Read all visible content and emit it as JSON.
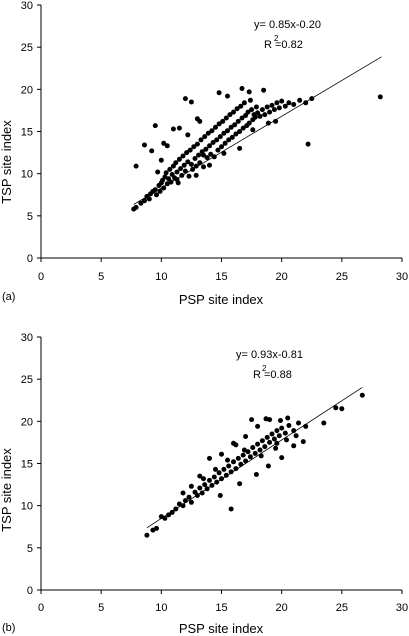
{
  "chart_data": [
    {
      "type": "scatter",
      "panel_label": "(a)",
      "xlabel": "PSP  site index",
      "ylabel": "TSP  site index",
      "xlim": [
        0,
        30
      ],
      "ylim": [
        0,
        30
      ],
      "xticks": [
        "0",
        "5",
        "10",
        "15",
        "20",
        "25",
        "30"
      ],
      "yticks": [
        "0",
        "5",
        "10",
        "15",
        "20",
        "25",
        "30"
      ],
      "equation": "y=  0.85x-0.20",
      "r2": "R  =0.82",
      "r2_sup": "2",
      "regression": {
        "slope": 0.85,
        "intercept": -0.2,
        "x_range": [
          7.7,
          28.3
        ]
      },
      "points": [
        [
          7.7,
          5.8
        ],
        [
          7.9,
          6.0
        ],
        [
          8.3,
          6.5
        ],
        [
          8.6,
          6.8
        ],
        [
          8.8,
          7.3
        ],
        [
          9.0,
          7.0
        ],
        [
          9.1,
          7.6
        ],
        [
          9.3,
          7.9
        ],
        [
          9.5,
          8.1
        ],
        [
          9.6,
          7.5
        ],
        [
          9.8,
          8.6
        ],
        [
          9.9,
          7.9
        ],
        [
          10.0,
          8.9
        ],
        [
          10.1,
          9.2
        ],
        [
          10.2,
          8.3
        ],
        [
          10.3,
          9.6
        ],
        [
          10.4,
          10.1
        ],
        [
          10.5,
          8.8
        ],
        [
          10.6,
          9.4
        ],
        [
          10.7,
          10.5
        ],
        [
          10.8,
          9.0
        ],
        [
          10.9,
          9.9
        ],
        [
          11.0,
          10.9
        ],
        [
          11.1,
          9.5
        ],
        [
          11.2,
          11.3
        ],
        [
          11.3,
          10.2
        ],
        [
          11.4,
          8.9
        ],
        [
          11.5,
          11.7
        ],
        [
          11.6,
          10.6
        ],
        [
          11.7,
          9.8
        ],
        [
          11.8,
          12.1
        ],
        [
          11.9,
          11.0
        ],
        [
          12.0,
          10.3
        ],
        [
          12.1,
          12.5
        ],
        [
          12.2,
          11.4
        ],
        [
          12.3,
          9.7
        ],
        [
          12.4,
          12.8
        ],
        [
          12.5,
          11.1
        ],
        [
          12.6,
          10.5
        ],
        [
          12.7,
          13.2
        ],
        [
          12.8,
          11.8
        ],
        [
          12.9,
          10.9
        ],
        [
          13.0,
          13.5
        ],
        [
          13.1,
          12.2
        ],
        [
          13.2,
          11.3
        ],
        [
          13.3,
          14.0
        ],
        [
          13.4,
          12.6
        ],
        [
          13.5,
          10.8
        ],
        [
          13.6,
          14.4
        ],
        [
          13.7,
          12.9
        ],
        [
          13.8,
          11.9
        ],
        [
          13.9,
          14.8
        ],
        [
          14.0,
          13.3
        ],
        [
          14.1,
          12.3
        ],
        [
          14.2,
          15.1
        ],
        [
          14.3,
          13.7
        ],
        [
          14.4,
          12.0
        ],
        [
          14.5,
          15.5
        ],
        [
          14.6,
          14.0
        ],
        [
          14.7,
          12.8
        ],
        [
          14.8,
          15.9
        ],
        [
          14.9,
          14.4
        ],
        [
          15.0,
          13.2
        ],
        [
          15.1,
          16.2
        ],
        [
          15.2,
          14.8
        ],
        [
          15.3,
          13.6
        ],
        [
          15.4,
          16.6
        ],
        [
          15.5,
          15.1
        ],
        [
          15.6,
          14.0
        ],
        [
          15.7,
          17.0
        ],
        [
          15.8,
          15.5
        ],
        [
          15.9,
          14.3
        ],
        [
          16.0,
          17.3
        ],
        [
          16.1,
          15.8
        ],
        [
          16.2,
          14.7
        ],
        [
          16.3,
          17.7
        ],
        [
          16.4,
          16.2
        ],
        [
          16.5,
          15.0
        ],
        [
          16.6,
          18.0
        ],
        [
          16.7,
          16.6
        ],
        [
          16.8,
          15.4
        ],
        [
          16.9,
          18.4
        ],
        [
          17.0,
          16.9
        ],
        [
          17.1,
          15.7
        ],
        [
          17.2,
          17.3
        ],
        [
          17.3,
          16.0
        ],
        [
          17.4,
          18.7
        ],
        [
          17.5,
          17.6
        ],
        [
          17.6,
          16.4
        ],
        [
          17.7,
          17.0
        ],
        [
          17.8,
          16.7
        ],
        [
          17.9,
          17.9
        ],
        [
          18.0,
          17.2
        ],
        [
          18.2,
          16.8
        ],
        [
          18.4,
          17.6
        ],
        [
          18.6,
          17.0
        ],
        [
          18.8,
          17.9
        ],
        [
          19.0,
          17.3
        ],
        [
          19.2,
          18.1
        ],
        [
          19.4,
          17.6
        ],
        [
          19.6,
          18.4
        ],
        [
          19.8,
          17.8
        ],
        [
          20.0,
          18.6
        ],
        [
          20.3,
          18.0
        ],
        [
          20.6,
          18.4
        ],
        [
          21.0,
          18.2
        ],
        [
          21.5,
          18.7
        ],
        [
          22.0,
          18.4
        ],
        [
          22.5,
          18.9
        ],
        [
          22.2,
          13.5
        ],
        [
          28.2,
          19.1
        ],
        [
          8.6,
          13.4
        ],
        [
          9.2,
          12.7
        ],
        [
          9.5,
          15.7
        ],
        [
          10.2,
          13.6
        ],
        [
          7.9,
          10.9
        ],
        [
          12.0,
          18.9
        ],
        [
          13.0,
          16.5
        ],
        [
          12.5,
          18.5
        ],
        [
          11.5,
          15.4
        ],
        [
          14.8,
          19.6
        ],
        [
          16.7,
          20.1
        ],
        [
          17.3,
          19.7
        ],
        [
          18.5,
          19.9
        ],
        [
          15.5,
          19.2
        ],
        [
          11.0,
          15.3
        ],
        [
          10.5,
          13.3
        ],
        [
          19.5,
          16.2
        ],
        [
          16.5,
          13.0
        ],
        [
          14.0,
          11.0
        ],
        [
          12.9,
          9.8
        ],
        [
          13.5,
          12.2
        ],
        [
          11.3,
          9.3
        ],
        [
          10.0,
          11.6
        ],
        [
          9.7,
          10.2
        ],
        [
          15.2,
          12.4
        ],
        [
          17.6,
          15.2
        ],
        [
          18.9,
          16.0
        ],
        [
          13.2,
          16.2
        ],
        [
          12.2,
          14.6
        ]
      ]
    },
    {
      "type": "scatter",
      "panel_label": "(b)",
      "xlabel": "PSP  site index",
      "ylabel": "TSP  site index",
      "xlim": [
        0,
        30
      ],
      "ylim": [
        0,
        30
      ],
      "xticks": [
        "0",
        "5",
        "10",
        "15",
        "20",
        "25",
        "30"
      ],
      "yticks": [
        "0",
        "5",
        "10",
        "15",
        "20",
        "25",
        "30"
      ],
      "equation": "y=  0.93x-0.81",
      "r2": "R  =0.88",
      "r2_sup": "2",
      "regression": {
        "slope": 0.93,
        "intercept": -0.81,
        "x_range": [
          8.8,
          26.7
        ]
      },
      "points": [
        [
          8.8,
          6.5
        ],
        [
          9.3,
          7.1
        ],
        [
          9.6,
          7.3
        ],
        [
          10.0,
          8.7
        ],
        [
          10.3,
          8.5
        ],
        [
          10.6,
          8.9
        ],
        [
          10.9,
          9.2
        ],
        [
          11.2,
          9.6
        ],
        [
          11.5,
          10.2
        ],
        [
          11.8,
          10.0
        ],
        [
          12.0,
          10.6
        ],
        [
          12.3,
          11.0
        ],
        [
          12.5,
          10.4
        ],
        [
          12.8,
          11.6
        ],
        [
          13.0,
          11.2
        ],
        [
          13.2,
          12.1
        ],
        [
          13.4,
          11.5
        ],
        [
          13.6,
          12.5
        ],
        [
          13.8,
          12.0
        ],
        [
          14.0,
          13.0
        ],
        [
          14.2,
          12.4
        ],
        [
          14.4,
          13.4
        ],
        [
          14.6,
          12.8
        ],
        [
          14.8,
          13.9
        ],
        [
          15.0,
          13.2
        ],
        [
          15.2,
          14.3
        ],
        [
          15.4,
          13.6
        ],
        [
          15.6,
          14.7
        ],
        [
          15.8,
          14.0
        ],
        [
          16.0,
          15.2
        ],
        [
          16.2,
          14.4
        ],
        [
          16.4,
          15.6
        ],
        [
          16.6,
          14.9
        ],
        [
          16.8,
          16.0
        ],
        [
          17.0,
          15.3
        ],
        [
          17.2,
          16.4
        ],
        [
          17.4,
          15.8
        ],
        [
          17.6,
          16.9
        ],
        [
          17.8,
          16.2
        ],
        [
          18.0,
          17.3
        ],
        [
          18.2,
          16.6
        ],
        [
          18.4,
          17.7
        ],
        [
          18.6,
          17.0
        ],
        [
          18.8,
          18.1
        ],
        [
          19.0,
          17.5
        ],
        [
          19.2,
          18.5
        ],
        [
          19.4,
          17.9
        ],
        [
          19.6,
          18.9
        ],
        [
          19.8,
          18.3
        ],
        [
          20.0,
          19.2
        ],
        [
          20.3,
          18.6
        ],
        [
          20.6,
          19.5
        ],
        [
          21.0,
          18.9
        ],
        [
          21.4,
          19.8
        ],
        [
          22.0,
          19.4
        ],
        [
          23.5,
          19.8
        ],
        [
          24.5,
          21.6
        ],
        [
          25.0,
          21.5
        ],
        [
          26.7,
          23.1
        ],
        [
          13.2,
          13.5
        ],
        [
          14.0,
          15.6
        ],
        [
          15.0,
          16.1
        ],
        [
          16.0,
          17.4
        ],
        [
          16.2,
          17.2
        ],
        [
          17.0,
          18.2
        ],
        [
          18.0,
          19.4
        ],
        [
          19.0,
          20.2
        ],
        [
          18.7,
          20.3
        ],
        [
          19.9,
          20.1
        ],
        [
          20.5,
          20.4
        ],
        [
          17.5,
          20.2
        ],
        [
          15.5,
          15.4
        ],
        [
          14.5,
          14.3
        ],
        [
          13.5,
          13.2
        ],
        [
          12.5,
          12.3
        ],
        [
          11.8,
          11.5
        ],
        [
          16.5,
          12.6
        ],
        [
          17.9,
          13.7
        ],
        [
          18.9,
          14.7
        ],
        [
          20.0,
          15.7
        ],
        [
          21.0,
          17.1
        ],
        [
          15.8,
          9.6
        ],
        [
          14.9,
          11.2
        ],
        [
          16.9,
          16.6
        ],
        [
          19.5,
          16.8
        ],
        [
          18.3,
          15.9
        ],
        [
          19.6,
          17.4
        ],
        [
          20.4,
          17.8
        ],
        [
          21.2,
          18.3
        ],
        [
          21.8,
          17.6
        ]
      ]
    }
  ]
}
